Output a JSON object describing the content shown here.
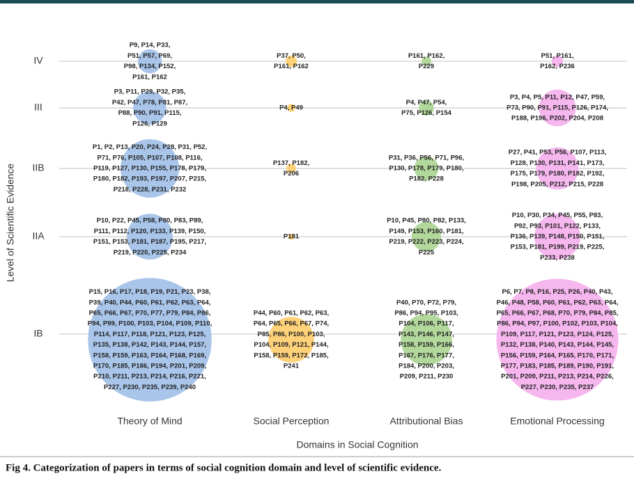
{
  "chart_data": {
    "type": "bubble",
    "x_label": "Domains in Social Cognition",
    "y_label": "Level of Scientific Evidence",
    "caption": "Fig 4. Categorization of papers in terms of social cognition domain and level of scientific evidence.",
    "categories": [
      "Theory of Mind",
      "Social Perception",
      "Attributional Bias",
      "Emotional Processing"
    ],
    "levels": [
      "IV",
      "III",
      "IIB",
      "IIA",
      "IB"
    ],
    "series": [
      {
        "color": "#a9c5ea",
        "sizes": [
          11,
          16,
          30,
          23,
          66
        ],
        "labels": [
          [
            "P9, P14, P33,",
            "P51, P57, P69,",
            "P98, P134, P152,",
            "P161, P162"
          ],
          [
            "P3, P11, P29, P32, P35,",
            "P42, P47, P78, P81, P87,",
            "P88, P90, P91, P115,",
            "P126, P129"
          ],
          [
            "P1, P2, P13, P20, P24, P28, P31, P52,",
            "P71, P76, P105, P107, P108, P116,",
            "P119, P127, P130, P155, P178, P179,",
            "P180, P182, P193, P197, P207, P215,",
            "P218, P228, P231, P232"
          ],
          [
            "P10, P22, P45, P58, P80, P83, P89,",
            "P111, P112, P120, P133, P139, P150,",
            "P151, P153, P181, P187, P195, P217,",
            "P219, P220, P225, P234"
          ],
          [
            "P15, P16, P17, P18, P19, P21, P23, P38,",
            "P39, P40, P44, P60, P61, P62, P63, P64,",
            "P65, P66, P67, P70, P77, P79, P84, P86,",
            "P94, P99, P100, P103, P104, P109, P110,",
            "P114, P117, P118, P121, P123, P125,",
            "P135, P138, P142, P143, P144, P157,",
            "P158, P159, P163, P164, P168, P169,",
            "P170, P185, P186, P194, P201, P209,",
            "P210, P211, P213, P214, P216, P221,",
            "P227, P230, P235, P239, P240"
          ]
        ]
      },
      {
        "color": "#ffd27a",
        "sizes": [
          4,
          2,
          3,
          1,
          23
        ],
        "labels": [
          [
            "P37, P50,",
            "P161, P162"
          ],
          [
            "P4, P49"
          ],
          [
            "P137, P182,",
            "P206"
          ],
          [
            "P181"
          ],
          [
            "P44, P60, P61, P62, P63,",
            "P64, P65, P66, P67, P74,",
            "P85, P86, P100, P103,",
            "P104, P109, P121, P144,",
            "P158, P159, P172, P185,",
            "P241"
          ]
        ]
      },
      {
        "color": "#b3d89c",
        "sizes": [
          3,
          6,
          11,
          14,
          26
        ],
        "labels": [
          [
            "P161, P162,",
            "P229"
          ],
          [
            "P4, P47, P54,",
            "P75, P126, P154"
          ],
          [
            "P31, P36, P56, P71, P96,",
            "P130, P178, P179, P180,",
            "P182, P228"
          ],
          [
            "P10, P45, P80, P82, P133,",
            "P149, P153, P160, P181,",
            "P219, P222, P223, P224,",
            "P225"
          ],
          [
            "P40, P70, P72, P79,",
            "P86, P94, P95, P103,",
            "P104, P106, P117,",
            "P143, P146, P147,",
            "P158, P159, P166,",
            "P167, P176, P177,",
            "P184, P200, P203,",
            "P209, P211, P230"
          ]
        ]
      },
      {
        "color": "#f6b6ee",
        "sizes": [
          4,
          18,
          21,
          23,
          65
        ],
        "labels": [
          [
            "P51, P161,",
            "P162, P236"
          ],
          [
            "P3, P4, P5, P11, P12, P47, P59,",
            "P73, P90, P91, P115, P126, P174,",
            "P188, P196, P202, P204, P208"
          ],
          [
            "P27, P41, P53, P56, P107, P113,",
            "P128, P130, P131, P141, P173,",
            "P175, P179, P180, P182, P192,",
            "P198, P205, P212, P215, P228"
          ],
          [
            "P10, P30, P34, P45, P55, P83,",
            "P92, P93, P101, P122, P133,",
            "P136, P139, P148, P150, P151,",
            "P153, P181, P199, P219, P225,",
            "P233, P238"
          ],
          [
            "P6, P7, P8, P16, P25, P26, P40, P43,",
            "P46, P48, P58, P60, P61, P62, P63, P64,",
            "P65, P66, P67, P68, P70, P79, P84, P85,",
            "P86, P94, P97, P100, P102, P103, P104,",
            "P109, P117, P121, P123, P124, P125,",
            "P132, P138, P140, P143, P144, P145,",
            "P156, P159, P164, P165, P170, P171,",
            "P177, P183, P185, P189, P190, P191,",
            "P201, P209, P211, P213, P214, P226,",
            "P227, P230, P235, P237"
          ]
        ]
      }
    ]
  }
}
